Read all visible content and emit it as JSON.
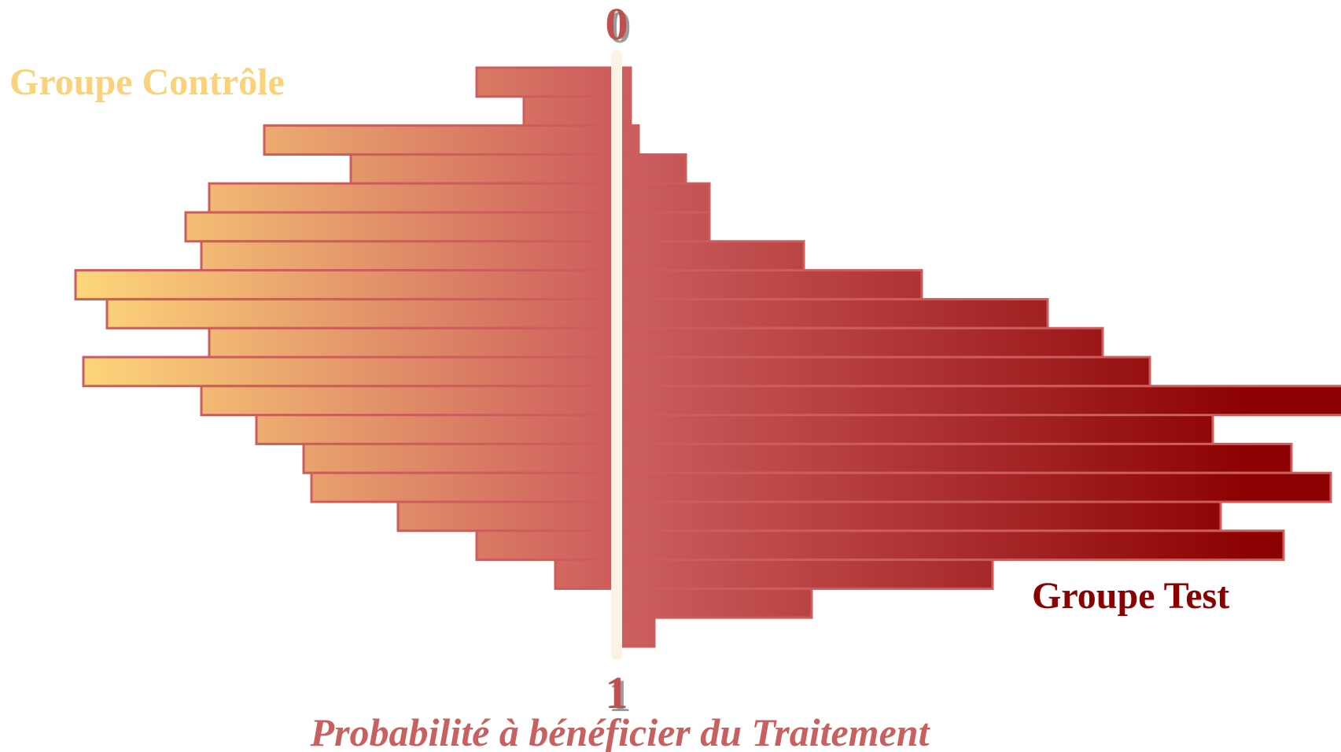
{
  "colors": {
    "control_start": "#fdd67a",
    "control_end": "#cd5c5c",
    "test_start": "#cd6060",
    "test_end": "#8b0000",
    "outline": "#cd5c5c",
    "axis": "#fdf2e4",
    "tick_label": "#c0504d",
    "axis_title": "#c96060"
  },
  "chart_data": {
    "type": "bar",
    "orientation": "horizontal-mirrored",
    "xlabel": "Probabilité à bénéficier du Traitement",
    "ylim": [
      0,
      1
    ],
    "axis_ticks": [
      "0",
      "1"
    ],
    "grid": false,
    "legend_placement": "top-left / bottom-right",
    "bins": 20,
    "series": [
      {
        "name": "Groupe Contrôle",
        "side": "left",
        "values": [
          17,
          11,
          44,
          33,
          51,
          54,
          52,
          68,
          64,
          51,
          67,
          52,
          45,
          39,
          38,
          27,
          17,
          7,
          0,
          0
        ]
      },
      {
        "name": "Groupe Test",
        "side": "right",
        "values": [
          1,
          1,
          2,
          8,
          11,
          11,
          23,
          38,
          54,
          61,
          67,
          92,
          75,
          85,
          90,
          76,
          84,
          47,
          24,
          4
        ]
      }
    ]
  }
}
